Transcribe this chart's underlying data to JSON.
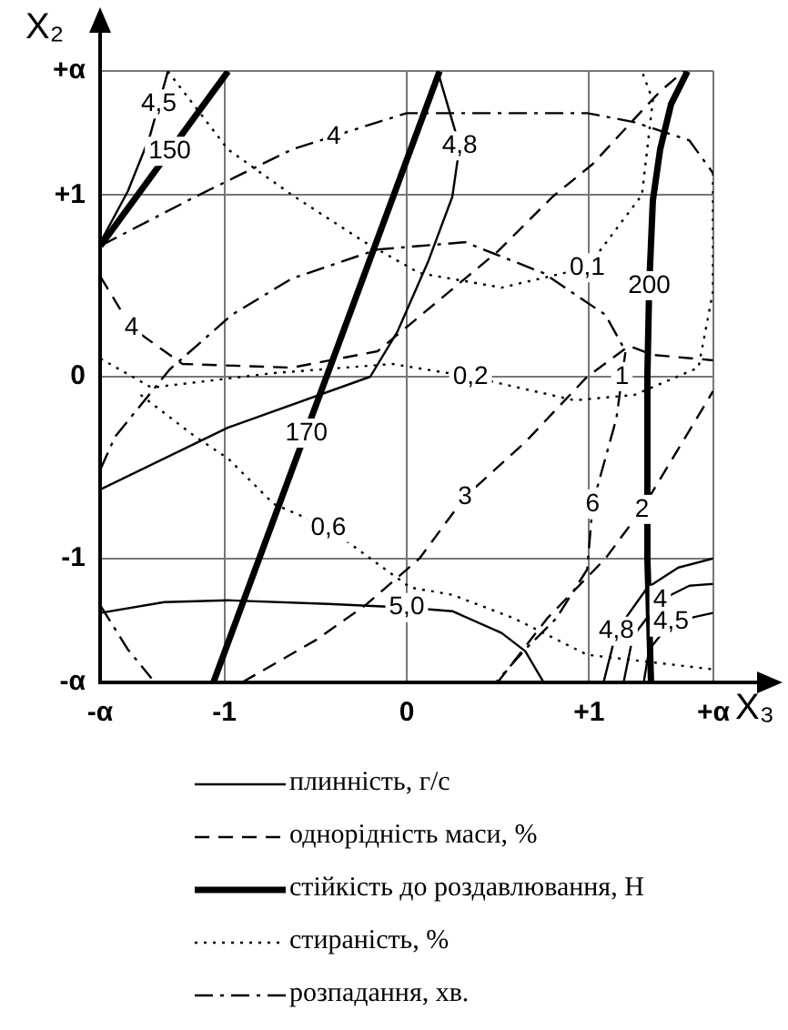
{
  "chart_data": {
    "type": "line",
    "xlabel": "X₃",
    "ylabel": "X₂",
    "xlim": [
      -1.682,
      1.682
    ],
    "ylim": [
      -1.682,
      1.682
    ],
    "xticks": [
      {
        "value": -1.682,
        "label": "-α"
      },
      {
        "value": -1,
        "label": "-1"
      },
      0,
      {
        "value": 1,
        "label": "+1"
      },
      {
        "value": 1.682,
        "label": "+α"
      }
    ],
    "yticks": [
      {
        "value": -1.682,
        "label": "-α"
      },
      {
        "value": -1,
        "label": "-1"
      },
      0,
      {
        "value": 1,
        "label": "+1"
      },
      {
        "value": 1.682,
        "label": "+α"
      }
    ],
    "grid": true,
    "legend": "bottom",
    "marker": "none",
    "series": [
      {
        "name": "плинність, г/с",
        "color": "#000000",
        "line_style": "solid",
        "x": [
          -1.68,
          -1.53,
          -1.41,
          -1.31
        ],
        "values": [
          0.74,
          1.02,
          1.32,
          1.68
        ]
      },
      {
        "color": "#000000",
        "line_style": "solid",
        "x": [
          0.17,
          0.29,
          0.25,
          0.12,
          -0.05,
          -0.2,
          -0.98,
          -1.68
        ],
        "values": [
          1.68,
          1.27,
          0.99,
          0.64,
          0.25,
          0,
          -0.28,
          -0.62
        ]
      },
      {
        "color": "#000000",
        "line_style": "solid",
        "x": [
          -1.68,
          -1.33,
          -0.98,
          -0.43,
          0,
          0.25,
          0.52,
          0.65,
          0.75
        ],
        "values": [
          -1.3,
          -1.24,
          -1.23,
          -1.25,
          -1.27,
          -1.29,
          -1.41,
          -1.51,
          -1.68
        ]
      },
      {
        "color": "#000000",
        "line_style": "solid",
        "x": [
          1.08,
          1.15,
          1.32,
          1.49,
          1.68
        ],
        "values": [
          -1.68,
          -1.4,
          -1.16,
          -1.05,
          -1.0
        ]
      },
      {
        "color": "#000000",
        "line_style": "solid",
        "x": [
          1.19,
          1.24,
          1.39,
          1.55,
          1.68
        ],
        "values": [
          -1.68,
          -1.43,
          -1.23,
          -1.15,
          -1.14
        ]
      },
      {
        "color": "#000000",
        "line_style": "solid",
        "x": [
          1.3,
          1.33,
          1.45,
          1.68
        ],
        "values": [
          -1.68,
          -1.5,
          -1.35,
          -1.3
        ]
      },
      {
        "name": "однорідність маси, %",
        "color": "#000000",
        "line_style": "dashed",
        "x": [
          -1.68,
          -1.51,
          -1.23,
          -0.63,
          -0.16,
          0.02,
          0.5,
          0.8,
          1.02,
          1.25,
          1.39,
          1.52
        ],
        "values": [
          0.55,
          0.27,
          0.07,
          0.05,
          0.14,
          0.29,
          0.69,
          0.99,
          1.17,
          1.42,
          1.57,
          1.68
        ]
      },
      {
        "color": "#000000",
        "line_style": "dashed",
        "x": [
          -0.9,
          -0.5,
          -0.23,
          0.07,
          0.32,
          0.65,
          0.99,
          1.22,
          1.35,
          1.68
        ],
        "values": [
          -1.68,
          -1.45,
          -1.26,
          -1.0,
          -0.66,
          -0.36,
          0,
          0.17,
          0.12,
          0.09
        ]
      },
      {
        "color": "#000000",
        "line_style": "dashed",
        "x": [
          0.5,
          0.77,
          1.09,
          1.29,
          1.68
        ],
        "values": [
          -1.68,
          -1.33,
          -1.0,
          -0.73,
          -0.08
        ]
      },
      {
        "name": "стійкість до роздавлювання, Н",
        "color": "#000000",
        "line_style": "solid",
        "x": [
          -1.68,
          -0.98
        ],
        "values": [
          0.72,
          1.68
        ]
      },
      {
        "color": "#000000",
        "line_style": "solid",
        "x": [
          0.18,
          -1.06
        ],
        "values": [
          1.68,
          -1.68
        ]
      },
      {
        "color": "#000000",
        "line_style": "solid",
        "x": [
          1.54,
          1.45,
          1.39,
          1.35,
          1.33,
          1.32,
          1.32,
          1.34
        ],
        "values": [
          1.68,
          1.5,
          1.25,
          0.97,
          0.5,
          0,
          -1,
          -1.68
        ]
      },
      {
        "name": "стираність, %",
        "color": "#000000",
        "line_style": "dotted",
        "x": [
          -1.31,
          -0.98,
          -0.63,
          -0.23,
          0.07,
          0.52,
          0.99,
          1.29,
          1.35,
          1.29
        ],
        "values": [
          1.68,
          1.25,
          1.0,
          0.74,
          0.57,
          0.49,
          0.6,
          1.0,
          1.52,
          1.68
        ]
      },
      {
        "color": "#000000",
        "line_style": "dotted",
        "x": [
          -1.68,
          -1.4,
          -0.73,
          -0.08,
          0.35,
          0.92,
          1.25,
          1.6,
          1.68,
          1.68
        ],
        "values": [
          0.1,
          -0.06,
          0.02,
          0.07,
          0,
          -0.13,
          -0.1,
          0.05,
          0.47,
          1.12
        ]
      },
      {
        "color": "#000000",
        "line_style": "dotted",
        "x": [
          -1.46,
          -1.16,
          -0.98,
          -0.73,
          -0.43,
          -0.2,
          0.02,
          0.25,
          0.59,
          0.99,
          1.68
        ],
        "values": [
          -0.1,
          -0.33,
          -0.45,
          -0.7,
          -0.83,
          -1.0,
          -1.16,
          -1.2,
          -1.33,
          -1.53,
          -1.61
        ]
      },
      {
        "name": "розпадання, хв.",
        "color": "#000000",
        "line_style": "dashdot",
        "x": [
          -1.68,
          -1.16,
          -0.63,
          -0.16,
          0,
          0.99,
          1.25,
          1.55,
          1.68
        ],
        "values": [
          0.72,
          0.99,
          1.25,
          1.4,
          1.45,
          1.45,
          1.4,
          1.3,
          1.12
        ]
      },
      {
        "color": "#000000",
        "line_style": "dashdot",
        "x": [
          -1.68,
          -1.6,
          -1.3,
          -0.96,
          -0.63,
          -0.16,
          0.32,
          0.75,
          1.09,
          1.2,
          1.15,
          1.02,
          0.99,
          0.82,
          0.65,
          0.49
        ],
        "values": [
          -0.51,
          -0.33,
          0.04,
          0.34,
          0.54,
          0.7,
          0.74,
          0.57,
          0.34,
          0.14,
          -0.23,
          -0.7,
          -1.06,
          -1.33,
          -1.5,
          -1.68
        ]
      },
      {
        "color": "#000000",
        "line_style": "dashdot",
        "x": [
          -1.68,
          -1.53,
          -1.4
        ],
        "values": [
          -1.26,
          -1.5,
          -1.66
        ]
      }
    ],
    "annotations": [
      {
        "text": "4,5",
        "x": -1.36,
        "y": 1.5
      },
      {
        "text": "150",
        "x": -1.3,
        "y": 1.24
      },
      {
        "text": "4",
        "x": -0.4,
        "y": 1.32
      },
      {
        "text": "4",
        "x": -1.51,
        "y": 0.27
      },
      {
        "text": "4,8",
        "x": 0.29,
        "y": 1.27
      },
      {
        "text": "0,1",
        "x": 0.99,
        "y": 0.6
      },
      {
        "text": "200",
        "x": 1.33,
        "y": 0.5
      },
      {
        "text": "0,2",
        "x": 0.35,
        "y": 0
      },
      {
        "text": "1",
        "x": 1.18,
        "y": 0
      },
      {
        "text": "170",
        "x": -0.55,
        "y": -0.31
      },
      {
        "text": "0,6",
        "x": -0.43,
        "y": -0.83
      },
      {
        "text": "5,0",
        "x": 0,
        "y": -1.27
      },
      {
        "text": "3",
        "x": 0.32,
        "y": -0.66
      },
      {
        "text": "6",
        "x": 1.02,
        "y": -0.7
      },
      {
        "text": "2",
        "x": 1.29,
        "y": -0.73
      },
      {
        "text": "4,8",
        "x": 1.15,
        "y": -1.4
      },
      {
        "text": "4",
        "x": 1.39,
        "y": -1.23
      },
      {
        "text": "4,5",
        "x": 1.45,
        "y": -1.35
      }
    ]
  }
}
